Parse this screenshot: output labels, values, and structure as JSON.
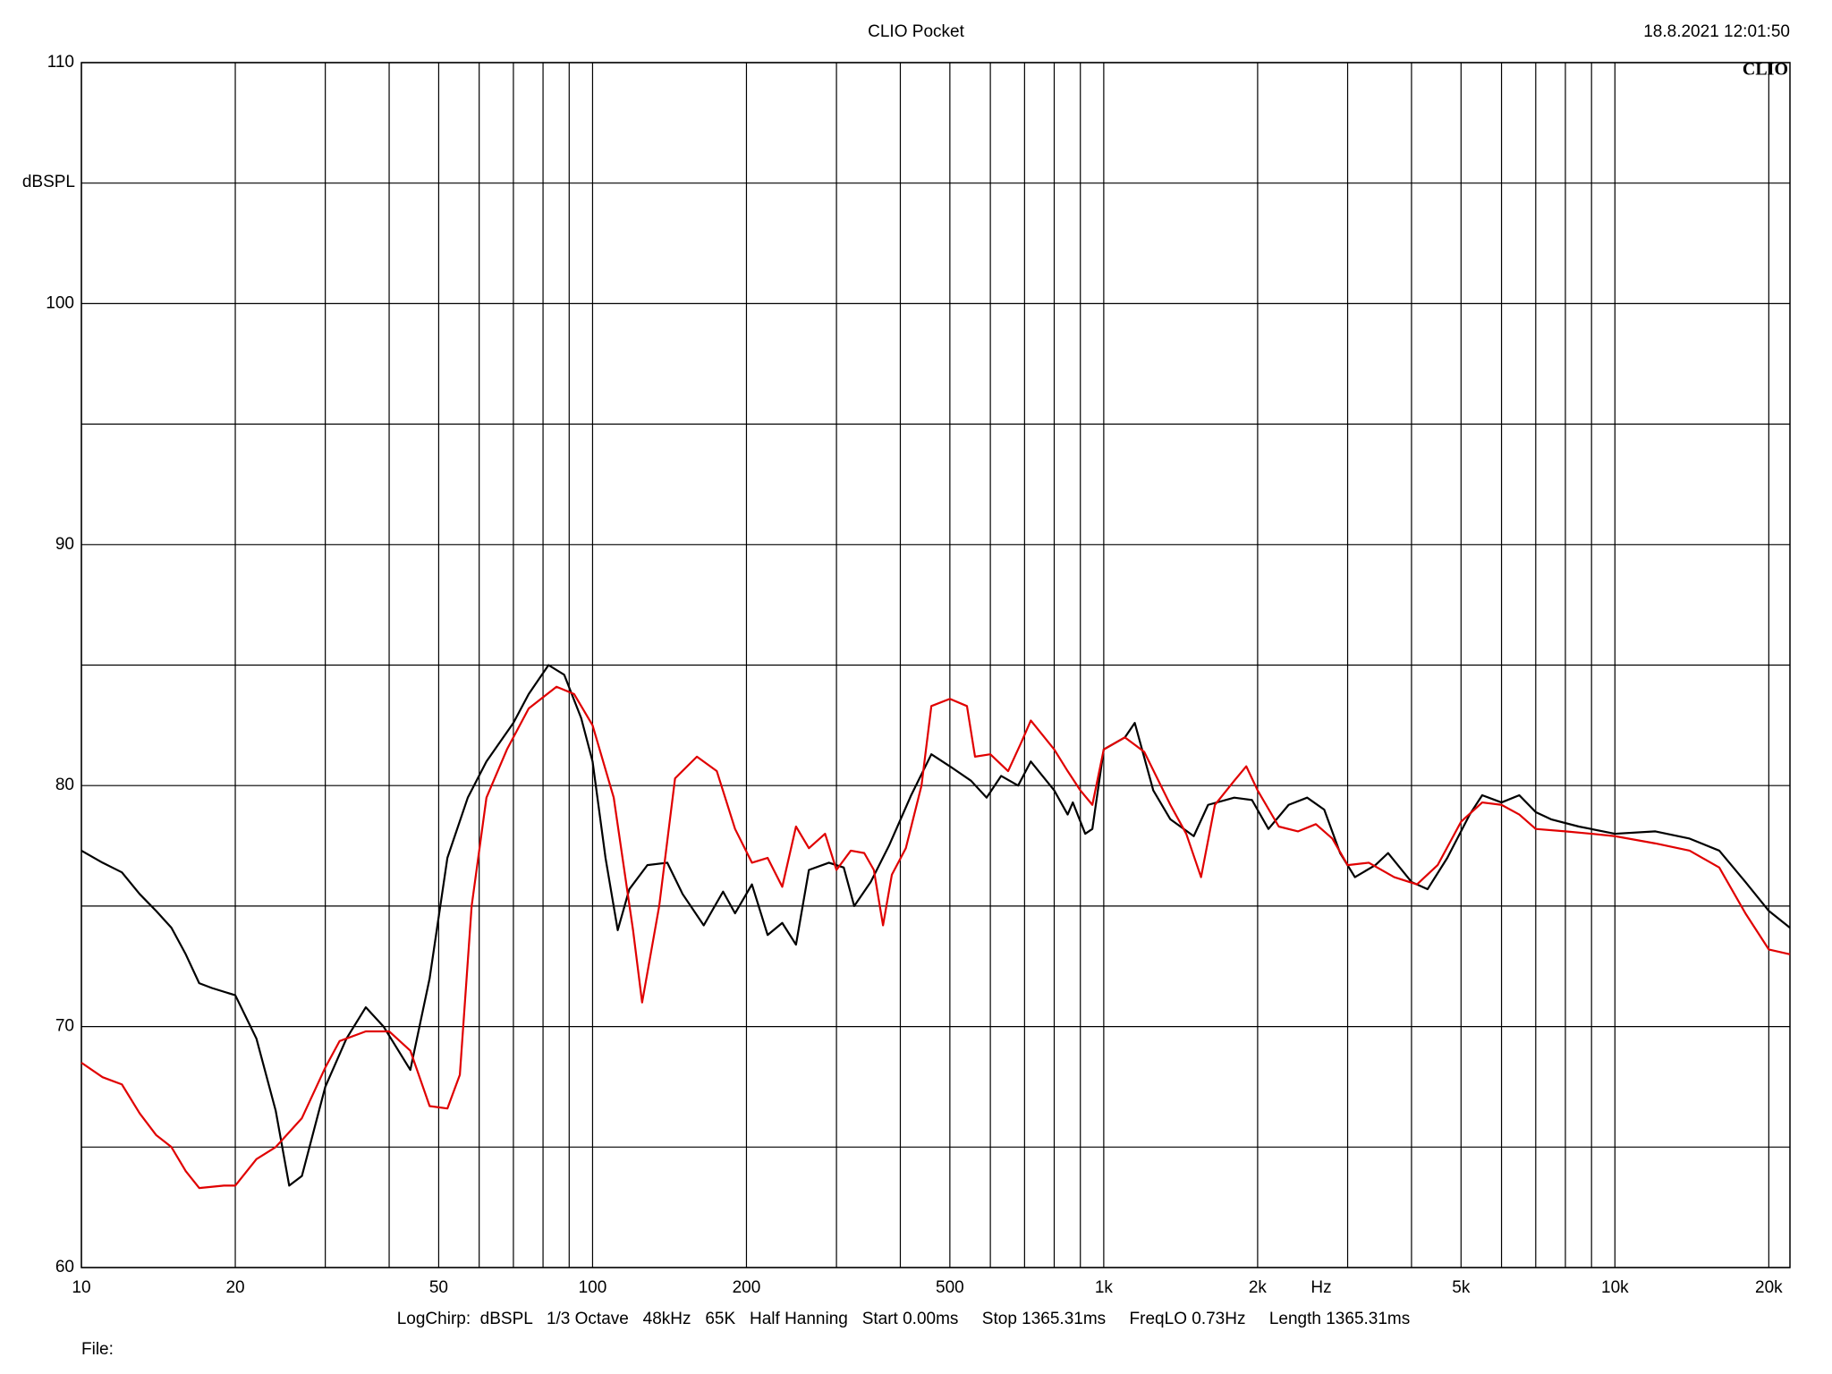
{
  "chart_data": {
    "type": "line",
    "title": "CLIO Pocket",
    "timestamp": "18.8.2021 12:01:50",
    "logo": "CLIO",
    "y_label": "dBSPL",
    "x_label": "Hz",
    "settings_text": "LogChirp:  dBSPL   1/3 Octave   48kHz   65K   Half Hanning   Start 0.00ms     Stop 1365.31ms     FreqLO 0.73Hz     Length 1365.31ms",
    "file_label": "File:",
    "xscale": "log",
    "grid": true,
    "xlim": [
      10,
      22000
    ],
    "ylim": [
      60,
      110
    ],
    "yticks": [
      60,
      70,
      80,
      90,
      100,
      110
    ],
    "minor_yticks": [
      65,
      75,
      85,
      95,
      105
    ],
    "xticks": [
      10,
      20,
      50,
      100,
      200,
      500,
      {
        "value": 1000,
        "label": "1k"
      },
      {
        "value": 2000,
        "label": "2k"
      },
      {
        "value": 5000,
        "label": "5k"
      },
      {
        "value": 10000,
        "label": "10k"
      },
      {
        "value": 20000,
        "label": "20k"
      }
    ],
    "minor_xticks": [
      30,
      40,
      60,
      70,
      80,
      90,
      300,
      400,
      600,
      700,
      800,
      900,
      3000,
      4000,
      6000,
      7000,
      8000,
      9000
    ],
    "series": [
      {
        "name": "Black",
        "color": "#000000",
        "x": [
          10,
          11,
          12,
          13,
          14,
          15,
          16,
          17,
          18,
          20,
          22,
          24,
          25.5,
          27,
          30,
          33,
          36,
          39,
          44,
          48,
          52,
          57,
          62,
          70,
          75,
          82,
          88,
          95,
          100,
          106,
          112,
          118,
          128,
          140,
          150,
          165,
          180,
          190,
          205,
          220,
          235,
          250,
          265,
          290,
          310,
          325,
          350,
          380,
          420,
          460,
          500,
          550,
          590,
          630,
          680,
          720,
          800,
          850,
          870,
          920,
          950,
          1000,
          1100,
          1150,
          1250,
          1350,
          1500,
          1600,
          1800,
          1950,
          2100,
          2300,
          2500,
          2700,
          2900,
          3100,
          3400,
          3600,
          4000,
          4300,
          4700,
          5200,
          5500,
          6000,
          6500,
          7000,
          7500,
          8500,
          10000,
          12000,
          14000,
          16000,
          18000,
          20000,
          22000
        ],
        "values": [
          77.3,
          76.8,
          76.4,
          75.5,
          74.8,
          74.1,
          73.0,
          71.8,
          71.6,
          71.3,
          69.5,
          66.5,
          63.4,
          63.8,
          67.5,
          69.5,
          70.8,
          70.0,
          68.2,
          72,
          77,
          79.5,
          81,
          82.6,
          83.8,
          85.0,
          84.6,
          82.8,
          81,
          77,
          74,
          75.7,
          76.7,
          76.8,
          75.5,
          74.2,
          75.6,
          74.7,
          75.9,
          73.8,
          74.3,
          73.4,
          76.5,
          76.8,
          76.6,
          75.0,
          76.0,
          77.5,
          79.6,
          81.3,
          80.8,
          80.2,
          79.5,
          80.4,
          80.0,
          81.0,
          79.8,
          78.8,
          79.3,
          78.0,
          78.2,
          81.5,
          82.0,
          82.6,
          79.8,
          78.6,
          77.9,
          79.2,
          79.5,
          79.4,
          78.2,
          79.2,
          79.5,
          79.0,
          77.2,
          76.2,
          76.7,
          77.2,
          76.0,
          75.7,
          77.0,
          78.8,
          79.6,
          79.3,
          79.6,
          78.9,
          78.6,
          78.3,
          78.0,
          78.1,
          77.8,
          77.3,
          76.0,
          74.8,
          74.1
        ]
      },
      {
        "name": "Red",
        "color": "#e00000",
        "x": [
          10,
          11,
          12,
          13,
          14,
          15,
          16,
          17,
          19,
          20,
          22,
          24,
          27,
          30,
          32,
          36,
          40,
          44,
          48,
          52,
          55,
          58,
          62,
          68,
          75,
          85,
          92,
          100,
          110,
          120,
          125,
          135,
          145,
          160,
          175,
          190,
          205,
          220,
          235,
          250,
          265,
          285,
          300,
          320,
          340,
          355,
          370,
          385,
          410,
          440,
          460,
          500,
          540,
          560,
          600,
          650,
          690,
          720,
          800,
          850,
          900,
          950,
          1000,
          1100,
          1200,
          1350,
          1450,
          1550,
          1650,
          1800,
          1900,
          2000,
          2200,
          2400,
          2600,
          2800,
          3000,
          3300,
          3700,
          4100,
          4500,
          5000,
          5500,
          6000,
          6500,
          7000,
          8000,
          9000,
          10000,
          12000,
          14000,
          16000,
          18000,
          20000,
          22000
        ],
        "values": [
          68.5,
          67.9,
          67.6,
          66.4,
          65.5,
          65.0,
          64.0,
          63.3,
          63.4,
          63.4,
          64.5,
          65.0,
          66.2,
          68.3,
          69.4,
          69.8,
          69.8,
          69.0,
          66.7,
          66.6,
          68.0,
          75.0,
          79.5,
          81.5,
          83.2,
          84.1,
          83.8,
          82.5,
          79.5,
          74,
          71,
          75,
          80.3,
          81.2,
          80.6,
          78.2,
          76.8,
          77.0,
          75.8,
          78.3,
          77.4,
          78.0,
          76.5,
          77.3,
          77.2,
          76.5,
          74.2,
          76.3,
          77.4,
          80,
          83.3,
          83.6,
          83.3,
          81.2,
          81.3,
          80.6,
          81.8,
          82.7,
          81.5,
          80.6,
          79.8,
          79.2,
          81.5,
          82.0,
          81.4,
          79.2,
          78.0,
          76.2,
          79.2,
          80.2,
          80.8,
          79.8,
          78.3,
          78.1,
          78.4,
          77.8,
          76.7,
          76.8,
          76.2,
          75.9,
          76.7,
          78.5,
          79.3,
          79.2,
          78.8,
          78.2,
          78.1,
          78.0,
          77.9,
          77.6,
          77.3,
          76.6,
          74.7,
          73.2,
          73.0
        ]
      }
    ]
  }
}
